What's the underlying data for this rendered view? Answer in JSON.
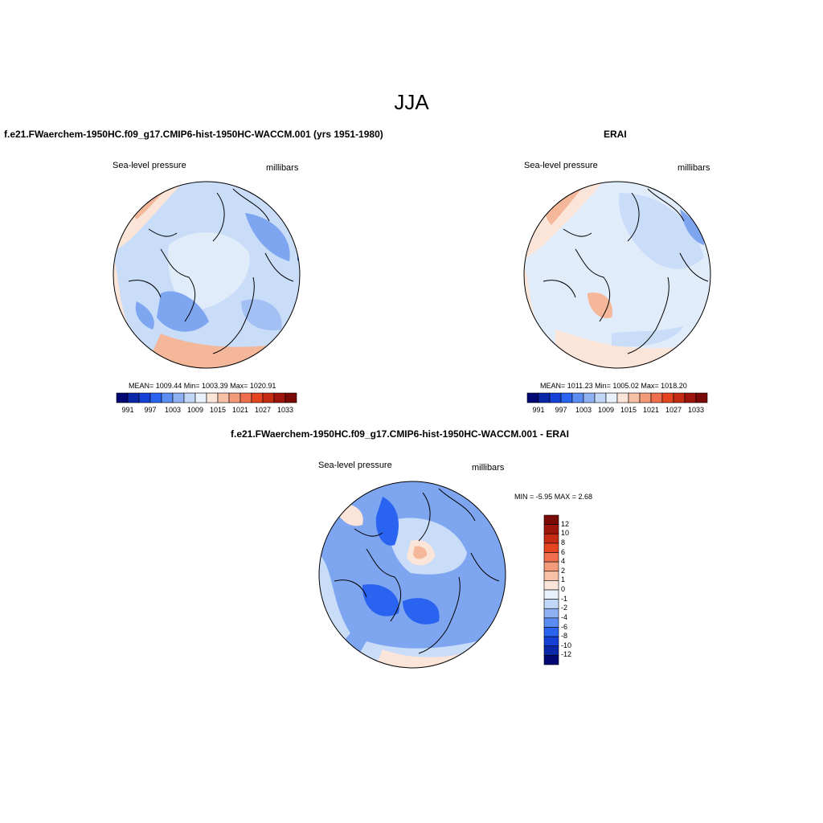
{
  "figure": {
    "title": "JJA"
  },
  "panels": [
    {
      "title": "f.e21.FWaerchem-1950HC.f09_g17.CMIP6-hist-1950HC-WACCM.001 (yrs 1951-1980)",
      "left_label": "Sea-level pressure",
      "right_label": "millibars",
      "stats": "MEAN= 1009.44   Min= 1003.39   Max= 1020.91",
      "colorbar": {
        "colors": [
          "#020873",
          "#0a27a8",
          "#1540d6",
          "#2a63f0",
          "#5a8cf2",
          "#8fb1f4",
          "#c2d7f7",
          "#e8f1fc",
          "#fbe4d8",
          "#f8c0a6",
          "#f39a7a",
          "#ee6e4d",
          "#e4441f",
          "#c52a12",
          "#9e150b",
          "#7a0a05"
        ],
        "tick_labels": [
          "991",
          "997",
          "1003",
          "1009",
          "1015",
          "1021",
          "1027",
          "1033"
        ]
      }
    },
    {
      "title": "ERAI",
      "left_label": "Sea-level pressure",
      "right_label": "millibars",
      "stats": "MEAN= 1011.23   Min= 1005.02   Max= 1018.20",
      "colorbar": {
        "colors": [
          "#020873",
          "#0a27a8",
          "#1540d6",
          "#2a63f0",
          "#5a8cf2",
          "#8fb1f4",
          "#c2d7f7",
          "#e8f1fc",
          "#fbe4d8",
          "#f8c0a6",
          "#f39a7a",
          "#ee6e4d",
          "#e4441f",
          "#c52a12",
          "#9e150b",
          "#7a0a05"
        ],
        "tick_labels": [
          "991",
          "997",
          "1003",
          "1009",
          "1015",
          "1021",
          "1027",
          "1033"
        ]
      }
    },
    {
      "title": "f.e21.FWaerchem-1950HC.f09_g17.CMIP6-hist-1950HC-WACCM.001 - ERAI",
      "left_label": "Sea-level pressure",
      "right_label": "millibars",
      "stats": "MIN = -5.95 MAX =   2.68",
      "colorbar": {
        "colors": [
          "#7a0a05",
          "#9e150b",
          "#c52a12",
          "#e4441f",
          "#ee6e4d",
          "#f39a7a",
          "#f8c0a6",
          "#fbe4d8",
          "#e8f1fc",
          "#c2d7f7",
          "#8fb1f4",
          "#5a8cf2",
          "#2a63f0",
          "#1540d6",
          "#0a27a8",
          "#020873"
        ],
        "tick_labels": [
          "12",
          "10",
          "8",
          "6",
          "4",
          "2",
          "1",
          "0",
          "-1",
          "-2",
          "-4",
          "-6",
          "-8",
          "-10",
          "-12"
        ]
      }
    }
  ]
}
